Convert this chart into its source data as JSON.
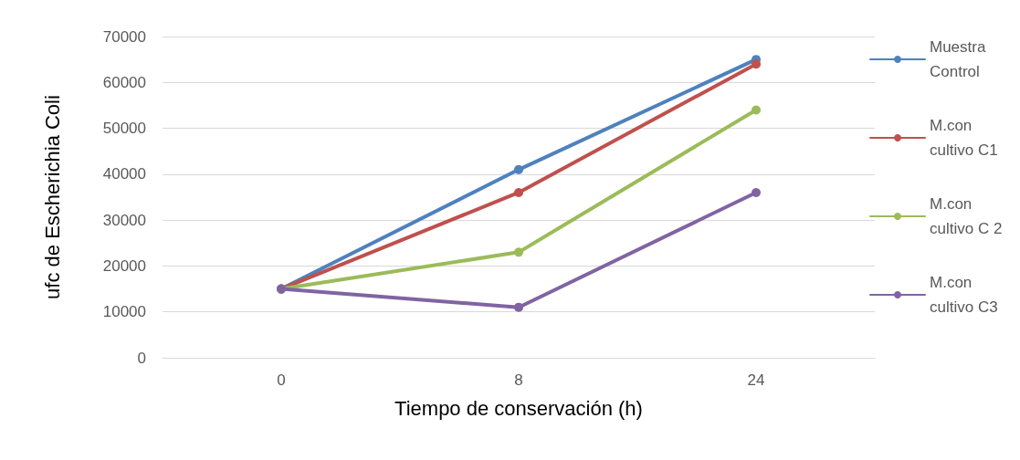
{
  "chart_data": {
    "type": "line",
    "xlabel": "Tiempo de conservación (h)",
    "ylabel": "ufc de Escherichia Coli",
    "categories": [
      "0",
      "8",
      "24"
    ],
    "series": [
      {
        "name": "Muestra Control",
        "color": "#4f81bd",
        "values": [
          15000,
          41000,
          65000
        ]
      },
      {
        "name": "M.con cultivo C1",
        "color": "#c0504d",
        "values": [
          15000,
          36000,
          64000
        ]
      },
      {
        "name": "M.con cultivo C 2",
        "color": "#9bbb59",
        "values": [
          15000,
          23000,
          54000
        ]
      },
      {
        "name": "M.con cultivo C3",
        "color": "#8064a2",
        "values": [
          15000,
          11000,
          36000
        ]
      }
    ],
    "ylim": [
      0,
      70000
    ],
    "yticks": [
      0,
      10000,
      20000,
      30000,
      40000,
      50000,
      60000,
      70000
    ],
    "grid": "y",
    "legend": "right",
    "marker": "circle",
    "line_style": "solid"
  }
}
